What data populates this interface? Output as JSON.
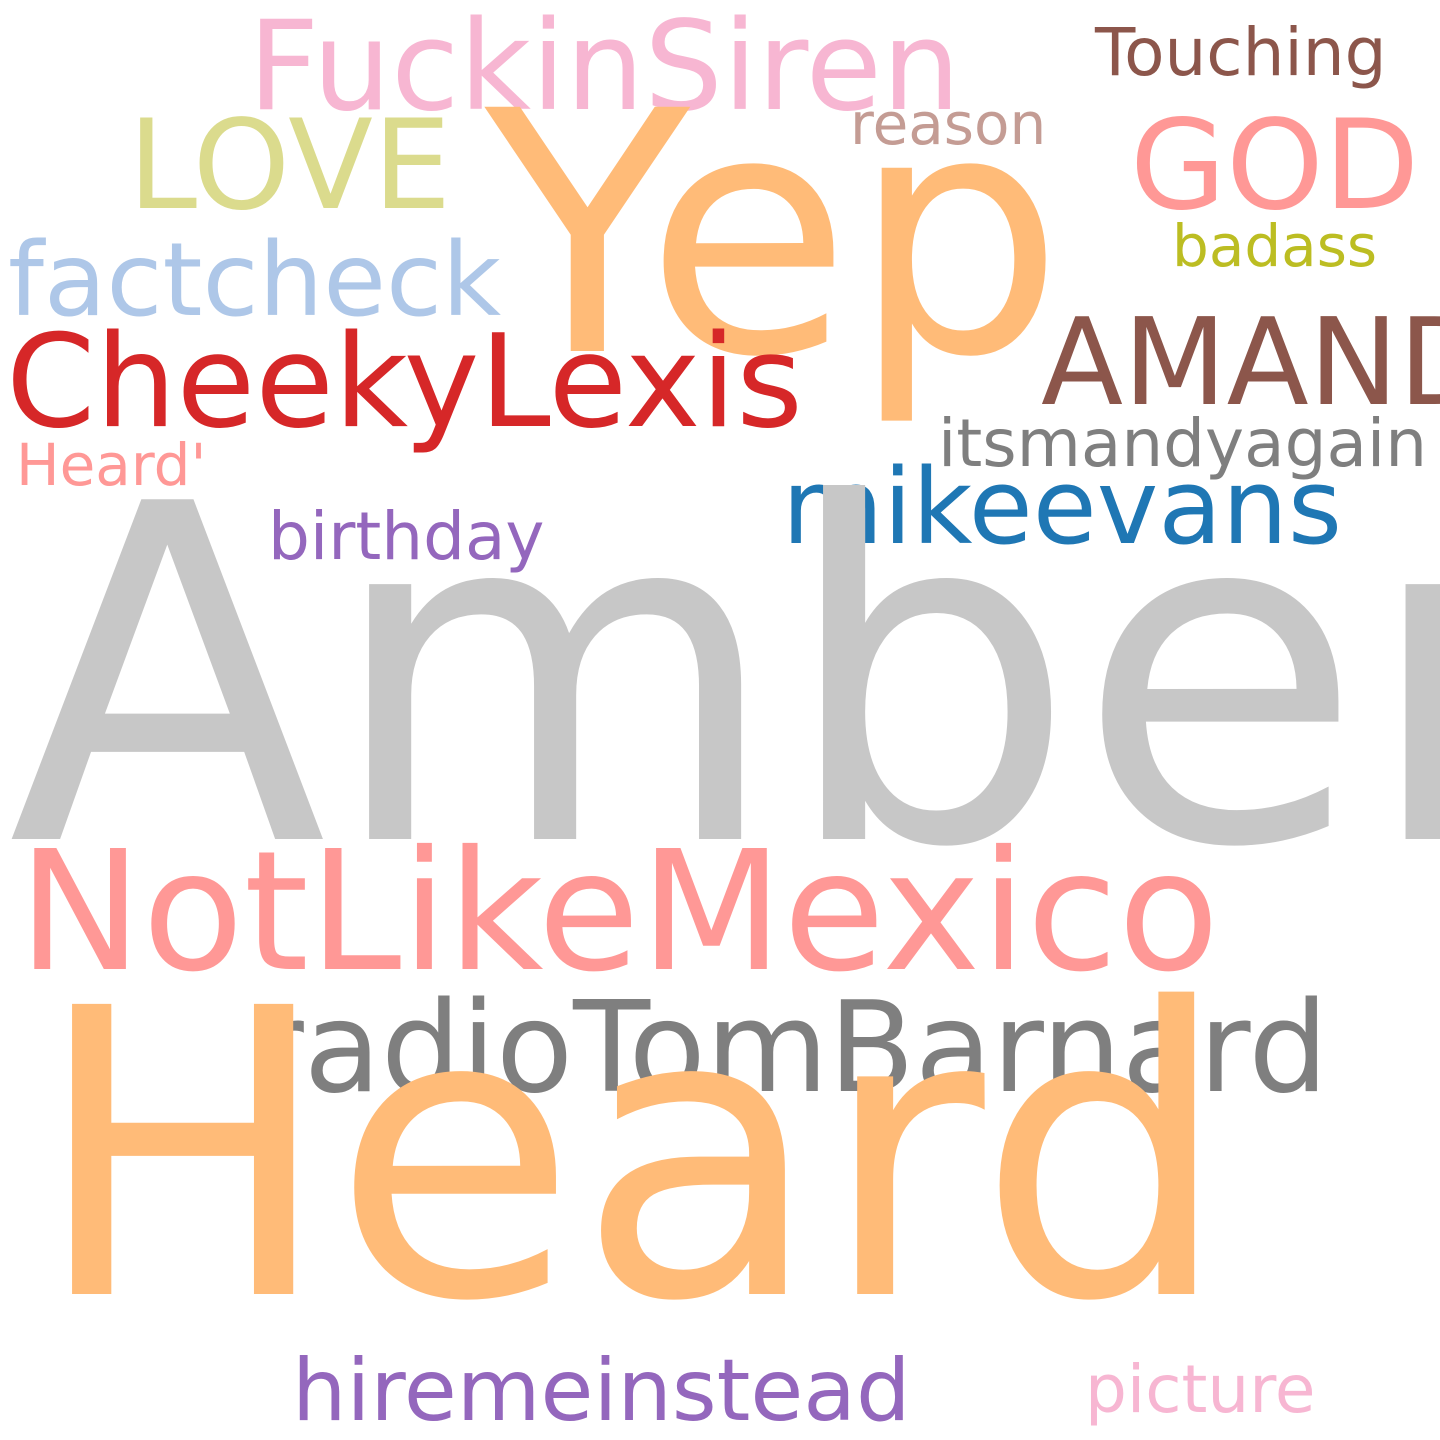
{
  "words": {
    "fuckinsiren": {
      "text": "FuckinSiren",
      "color": "#f7b6d2"
    },
    "touching": {
      "text": "Touching",
      "color": "#8c564b"
    },
    "yep": {
      "text": "Yep",
      "color": "#ffbb78"
    },
    "reason": {
      "text": "reason",
      "color": "#c49c94"
    },
    "love": {
      "text": "LOVE",
      "color": "#dbdb8d"
    },
    "god": {
      "text": "GOD",
      "color": "#ff9896"
    },
    "badass": {
      "text": "badass",
      "color": "#bcbd22"
    },
    "factcheck": {
      "text": "factcheck",
      "color": "#aec7e8"
    },
    "amanda": {
      "text": "AMANDA",
      "color": "#8c564b"
    },
    "cheekylexis": {
      "text": "CheekyLexis",
      "color": "#d62728"
    },
    "itsmandyagain": {
      "text": "itsmandyagain",
      "color": "#7f7f7f"
    },
    "heardq": {
      "text": "Heard'",
      "color": "#ff9896"
    },
    "mikeevans": {
      "text": "mikeevans",
      "color": "#1f77b4"
    },
    "birthday": {
      "text": "birthday",
      "color": "#9467bd"
    },
    "amber": {
      "text": "Amber",
      "color": "#c7c7c7"
    },
    "notlikemexico": {
      "text": "NotLikeMexico",
      "color": "#ff9896"
    },
    "radiotom": {
      "text": "radioTomBarnard",
      "color": "#7f7f7f"
    },
    "heard": {
      "text": "Heard",
      "color": "#ffbb78"
    },
    "hiremeinstead": {
      "text": "hiremeinstead",
      "color": "#9467bd"
    },
    "picture": {
      "text": "picture",
      "color": "#f7b6d2"
    }
  }
}
